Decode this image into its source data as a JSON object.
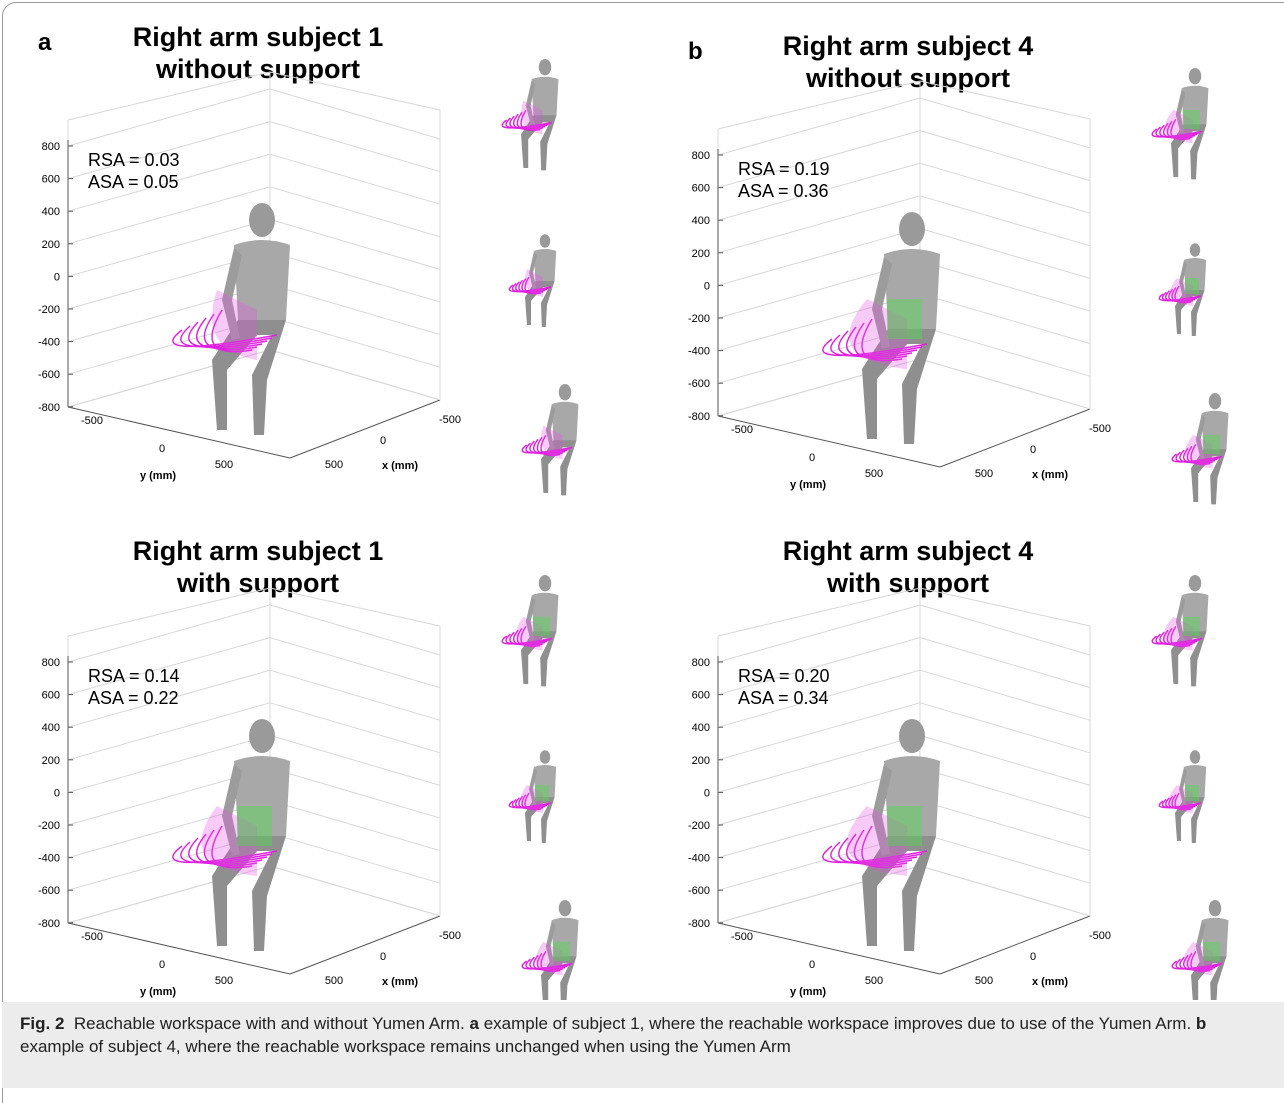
{
  "figure": {
    "panels": [
      {
        "letter": "a",
        "title": [
          "Right arm subject 1",
          "without support"
        ],
        "rsa": "RSA = 0.03",
        "asa": "ASA = 0.05",
        "z_ticks": [
          800,
          600,
          400,
          200,
          0,
          -200,
          -400,
          -600,
          -800
        ],
        "y_ticks": [
          -500,
          0,
          500
        ],
        "x_ticks": [
          -500,
          0,
          500
        ],
        "y_label": "y (mm)",
        "x_label": "x (mm)"
      },
      {
        "letter": "b",
        "title": [
          "Right arm subject 4",
          "without support"
        ],
        "rsa": "RSA = 0.19",
        "asa": "ASA = 0.36",
        "z_ticks": [
          800,
          600,
          400,
          200,
          0,
          -200,
          -400,
          -600,
          -800
        ],
        "y_ticks": [
          -500,
          0,
          500
        ],
        "x_ticks": [
          -500,
          0,
          500
        ],
        "y_label": "y (mm)",
        "x_label": "x (mm)"
      },
      {
        "title": [
          "Right arm subject 1",
          "with support"
        ],
        "rsa": "RSA = 0.14",
        "asa": "ASA = 0.22",
        "z_ticks": [
          800,
          600,
          400,
          200,
          0,
          -200,
          -400,
          -600,
          -800
        ],
        "y_ticks": [
          -500,
          0,
          500
        ],
        "x_ticks": [
          -500,
          0,
          500
        ],
        "y_label": "y (mm)",
        "x_label": "x (mm)"
      },
      {
        "title": [
          "Right arm subject 4",
          "with support"
        ],
        "rsa": "RSA = 0.20",
        "asa": "ASA = 0.34",
        "z_ticks": [
          800,
          600,
          400,
          200,
          0,
          -200,
          -400,
          -600,
          -800
        ],
        "y_ticks": [
          -500,
          0,
          500
        ],
        "x_ticks": [
          -500,
          0,
          500
        ],
        "y_label": "y (mm)",
        "x_label": "x (mm)"
      }
    ]
  },
  "caption": {
    "label": "Fig. 2",
    "text": "Reachable workspace with and without Yumen Arm.",
    "a_letter": "a",
    "a_text": "example of subject 1, where the reachable workspace improves due to use of the Yumen Arm.",
    "b_letter": "b",
    "b_text": "example of subject 4, where the reachable workspace remains unchanged when using the Yumen Arm"
  }
}
